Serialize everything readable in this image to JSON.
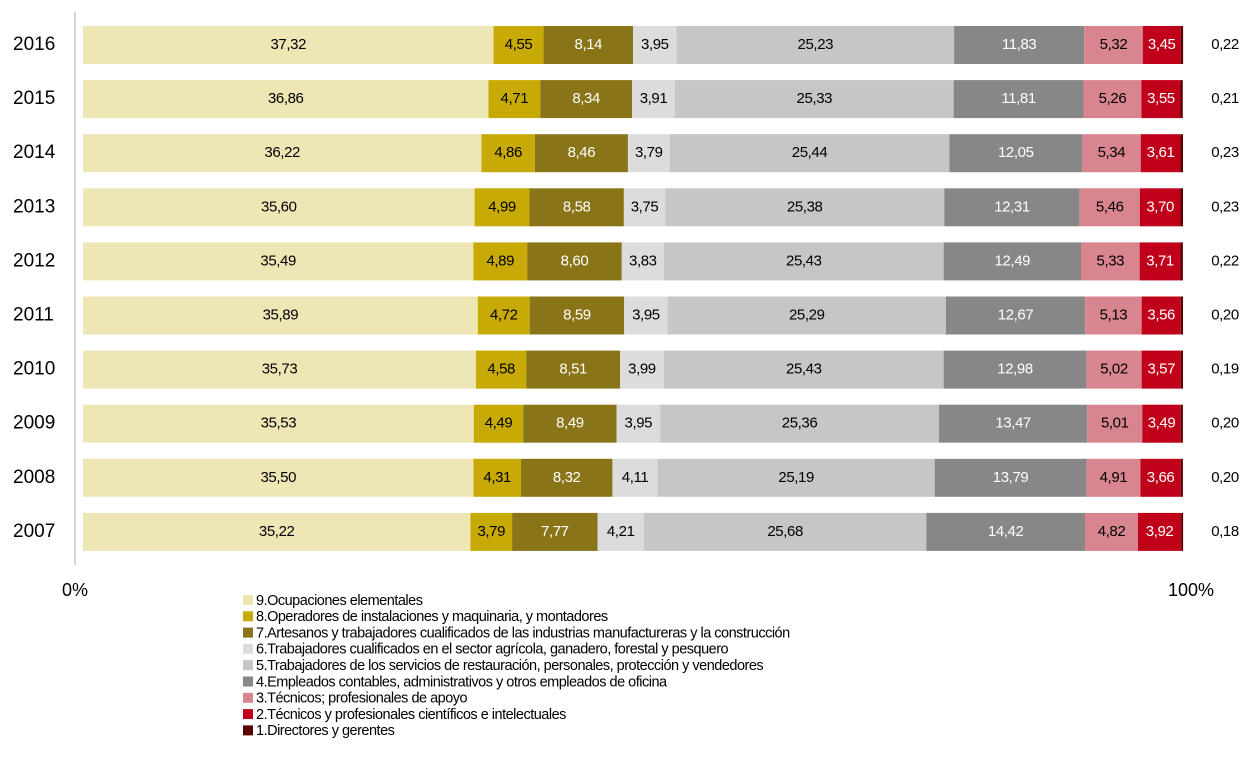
{
  "chart_data": {
    "type": "stacked_bar_horizontal",
    "categories": [
      "2016",
      "2015",
      "2014",
      "2013",
      "2012",
      "2011",
      "2010",
      "2009",
      "2008",
      "2007"
    ],
    "xlim": [
      0,
      100
    ],
    "xticks": [
      {
        "value": 0,
        "label": "0%"
      },
      {
        "value": 100,
        "label": "100%"
      }
    ],
    "series": [
      {
        "name": "9.Ocupaciones elementales",
        "color": "#efe6b5",
        "values": [
          37.32,
          36.86,
          36.22,
          35.6,
          35.49,
          35.89,
          35.73,
          35.53,
          35.5,
          35.22
        ],
        "value_labels": [
          "37,32",
          "36,86",
          "36,22",
          "35,60",
          "35,49",
          "35,89",
          "35,73",
          "35,53",
          "35,50",
          "35,22"
        ]
      },
      {
        "name": "8.Operadores de instalaciones y maquinaria, y montadores",
        "color": "#c8aa06",
        "values": [
          4.55,
          4.71,
          4.86,
          4.99,
          4.89,
          4.72,
          4.58,
          4.49,
          4.31,
          3.79
        ],
        "value_labels": [
          "4,55",
          "4,71",
          "4,86",
          "4,99",
          "4,89",
          "4,72",
          "4,58",
          "4,49",
          "4,31",
          "3,79"
        ]
      },
      {
        "name": "7.Artesanos y trabajadores cualificados de las industrias manufactureras y la construcción",
        "color": "#8a7418",
        "values": [
          8.14,
          8.34,
          8.46,
          8.58,
          8.6,
          8.59,
          8.51,
          8.49,
          8.32,
          7.77
        ],
        "value_labels": [
          "8,14",
          "8,34",
          "8,46",
          "8,58",
          "8,60",
          "8,59",
          "8,51",
          "8,49",
          "8,32",
          "7,77"
        ]
      },
      {
        "name": "6.Trabajadores cualificados en el sector agrícola, ganadero, forestal y pesquero",
        "color": "#dcdcdc",
        "values": [
          3.95,
          3.91,
          3.79,
          3.75,
          3.83,
          3.95,
          3.99,
          3.95,
          4.11,
          4.21
        ],
        "value_labels": [
          "3,95",
          "3,91",
          "3,79",
          "3,75",
          "3,83",
          "3,95",
          "3,99",
          "3,95",
          "4,11",
          "4,21"
        ]
      },
      {
        "name": "5.Trabajadores de los servicios de restauración, personales, protección y vendedores",
        "color": "#c6c6c6",
        "values": [
          25.23,
          25.33,
          25.44,
          25.38,
          25.43,
          25.29,
          25.43,
          25.36,
          25.19,
          25.68
        ],
        "value_labels": [
          "25,23",
          "25,33",
          "25,44",
          "25,38",
          "25,43",
          "25,29",
          "25,43",
          "25,36",
          "25,19",
          "25,68"
        ]
      },
      {
        "name": "4.Empleados contables, administrativos y otros empleados de oficina",
        "color": "#878787",
        "values": [
          11.83,
          11.81,
          12.05,
          12.31,
          12.49,
          12.67,
          12.98,
          13.47,
          13.79,
          14.42
        ],
        "value_labels": [
          "11,83",
          "11,81",
          "12,05",
          "12,31",
          "12,49",
          "12,67",
          "12,98",
          "13,47",
          "13,79",
          "14,42"
        ]
      },
      {
        "name": "3.Técnicos; profesionales de apoyo",
        "color": "#d98590",
        "values": [
          5.32,
          5.26,
          5.34,
          5.46,
          5.33,
          5.13,
          5.02,
          5.01,
          4.91,
          4.82
        ],
        "value_labels": [
          "5,32",
          "5,26",
          "5,34",
          "5,46",
          "5,33",
          "5,13",
          "5,02",
          "5,01",
          "4,91",
          "4,82"
        ]
      },
      {
        "name": "2.Técnicos y profesionales científicos e intelectuales",
        "color": "#c0001a",
        "values": [
          3.45,
          3.55,
          3.61,
          3.7,
          3.71,
          3.56,
          3.57,
          3.49,
          3.66,
          3.92
        ],
        "value_labels": [
          "3,45",
          "3,55",
          "3,61",
          "3,70",
          "3,71",
          "3,56",
          "3,57",
          "3,49",
          "3,66",
          "3,92"
        ]
      },
      {
        "name": "1.Directores y gerentes",
        "color": "#5a0000",
        "values": [
          0.22,
          0.21,
          0.23,
          0.23,
          0.22,
          0.2,
          0.19,
          0.2,
          0.2,
          0.18
        ],
        "value_labels": [
          "0,22",
          "0,21",
          "0,23",
          "0,23",
          "0,22",
          "0,20",
          "0,19",
          "0,20",
          "0,20",
          "0,18"
        ]
      }
    ]
  }
}
